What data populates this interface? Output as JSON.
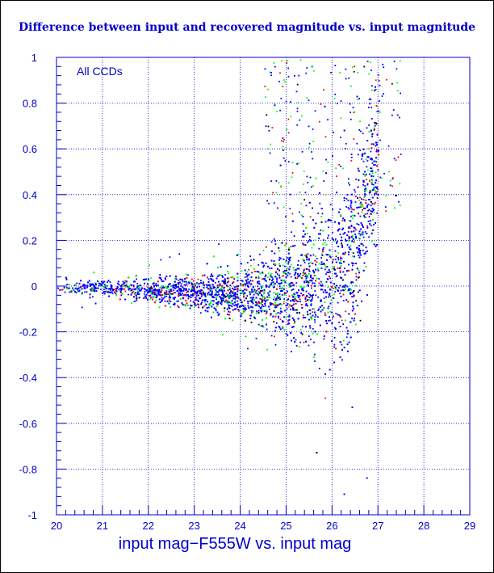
{
  "chart_data": {
    "type": "scatter",
    "title": "Difference between input and recovered magnitude vs. input magnitude",
    "xlabel": "input mag−F555W vs. input mag",
    "ylabel": "",
    "annotation": "All CCDs",
    "xlim": [
      20,
      29
    ],
    "ylim": [
      -1,
      1
    ],
    "x_ticks": [
      "20",
      "21",
      "22",
      "23",
      "24",
      "25",
      "26",
      "27",
      "28",
      "29"
    ],
    "y_ticks": [
      "1",
      "0.8",
      "0.6",
      "0.4",
      "0.2",
      "0",
      "-0.2",
      "-0.4",
      "-0.6",
      "-0.8",
      "-1"
    ],
    "grid": true,
    "point_colors": [
      "#0000ff",
      "#00ff00",
      "#ff0000",
      "#000000"
    ],
    "axis_color": "#0000cc",
    "series": [
      {
        "distribution": "envelope",
        "points": [
          [
            20.0,
            0.0,
            0.02
          ],
          [
            20.5,
            0.0,
            0.025
          ],
          [
            21.0,
            -0.005,
            0.03
          ],
          [
            21.5,
            -0.01,
            0.035
          ],
          [
            22.0,
            -0.015,
            0.045
          ],
          [
            22.5,
            -0.02,
            0.055
          ],
          [
            23.0,
            -0.025,
            0.065
          ],
          [
            23.5,
            -0.03,
            0.08
          ],
          [
            24.0,
            -0.03,
            0.1
          ],
          [
            24.5,
            -0.02,
            0.14
          ],
          [
            25.0,
            -0.01,
            0.18
          ],
          [
            25.5,
            0.0,
            0.24
          ],
          [
            26.0,
            0.03,
            0.3
          ],
          [
            26.3,
            0.08,
            0.32
          ],
          [
            26.6,
            0.25,
            0.3
          ],
          [
            27.0,
            0.6,
            0.35
          ]
        ]
      }
    ]
  }
}
